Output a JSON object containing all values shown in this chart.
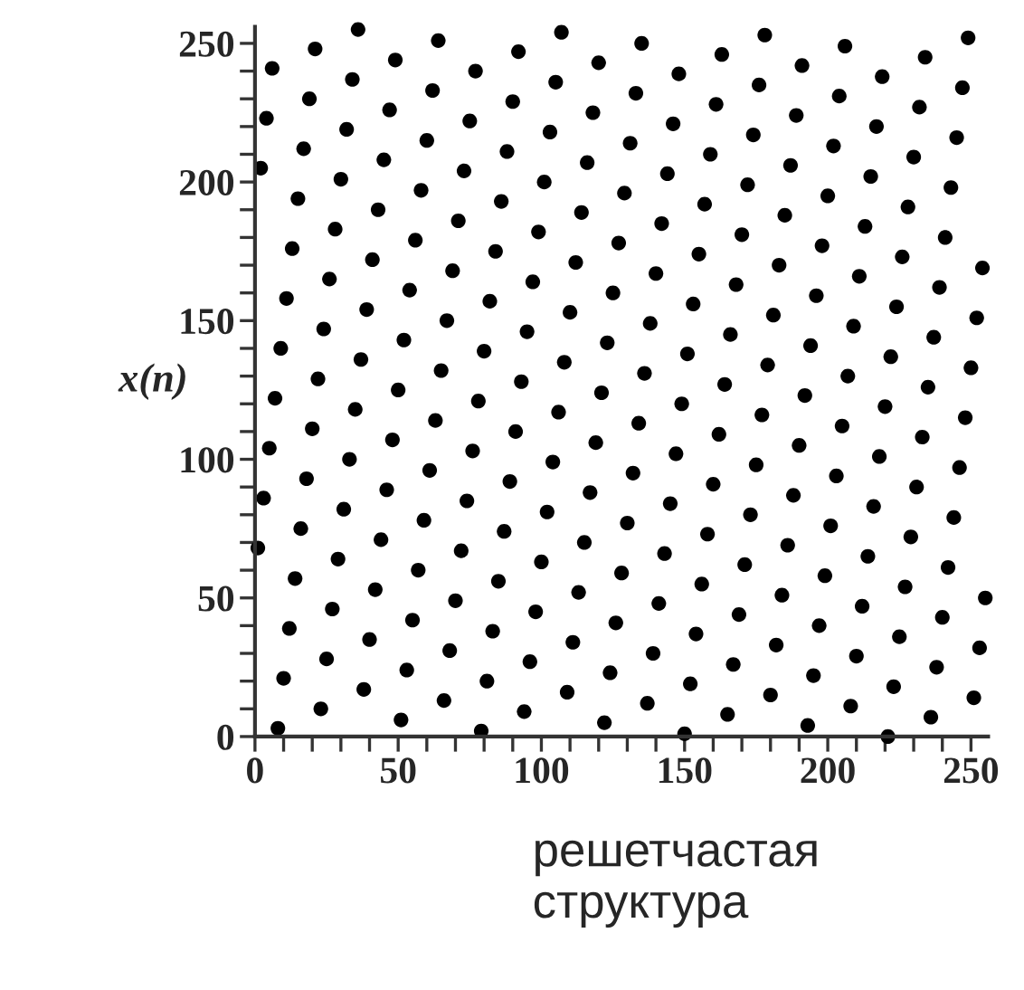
{
  "chart_data": {
    "type": "scatter",
    "ylabel": "x(n)",
    "annotations": [
      "решетчастая\nструктура"
    ],
    "x": [
      1,
      2,
      3,
      4,
      5,
      6,
      7,
      8,
      9,
      10,
      11,
      12,
      13,
      14,
      15,
      16,
      17,
      18,
      19,
      20,
      21,
      22,
      23,
      24,
      25,
      26,
      27,
      28,
      29,
      30,
      31,
      32,
      33,
      34,
      35,
      36,
      37,
      38,
      39,
      40,
      41,
      42,
      43,
      44,
      45,
      46,
      47,
      48,
      49,
      50,
      51,
      52,
      53,
      54,
      55,
      56,
      57,
      58,
      59,
      60,
      61,
      62,
      63,
      64,
      65,
      66,
      67,
      68,
      69,
      70,
      71,
      72,
      73,
      74,
      75,
      76,
      77,
      78,
      79,
      80,
      81,
      82,
      83,
      84,
      85,
      86,
      87,
      88,
      89,
      90,
      91,
      92,
      93,
      94,
      95,
      96,
      97,
      98,
      99,
      100,
      101,
      102,
      103,
      104,
      105,
      106,
      107,
      108,
      109,
      110,
      111,
      112,
      113,
      114,
      115,
      116,
      117,
      118,
      119,
      120,
      121,
      122,
      123,
      124,
      125,
      126,
      127,
      128,
      129,
      130,
      131,
      132,
      133,
      134,
      135,
      136,
      137,
      138,
      139,
      140,
      141,
      142,
      143,
      144,
      145,
      146,
      147,
      148,
      149,
      150,
      151,
      152,
      153,
      154,
      155,
      156,
      157,
      158,
      159,
      160,
      161,
      162,
      163,
      164,
      165,
      166,
      167,
      168,
      169,
      170,
      171,
      172,
      173,
      174,
      175,
      176,
      177,
      178,
      179,
      180,
      181,
      182,
      183,
      184,
      185,
      186,
      187,
      188,
      189,
      190,
      191,
      192,
      193,
      194,
      195,
      196,
      197,
      198,
      199,
      200,
      201,
      202,
      203,
      204,
      205,
      206,
      207,
      208,
      209,
      210,
      211,
      212,
      213,
      214,
      215,
      216,
      217,
      218,
      219,
      220,
      221,
      222,
      223,
      224,
      225,
      226,
      227,
      228,
      229,
      230,
      231,
      232,
      233,
      234,
      235,
      236,
      237,
      238,
      239,
      240,
      241,
      242,
      243,
      244,
      245,
      246,
      247,
      248,
      249,
      250,
      251,
      252,
      253,
      254,
      255
    ],
    "series": [
      {
        "color": "#000000",
        "values": [
          68,
          205,
          86,
          223,
          104,
          241,
          122,
          3,
          140,
          21,
          158,
          39,
          176,
          57,
          194,
          75,
          212,
          93,
          230,
          111,
          248,
          129,
          10,
          147,
          28,
          165,
          46,
          183,
          64,
          201,
          82,
          219,
          100,
          237,
          118,
          255,
          136,
          17,
          154,
          35,
          172,
          53,
          190,
          71,
          208,
          89,
          226,
          107,
          244,
          125,
          6,
          143,
          24,
          161,
          42,
          179,
          60,
          197,
          78,
          215,
          96,
          233,
          114,
          251,
          132,
          13,
          150,
          31,
          168,
          49,
          186,
          67,
          204,
          85,
          222,
          103,
          240,
          121,
          2,
          139,
          20,
          157,
          38,
          175,
          56,
          193,
          74,
          211,
          92,
          229,
          110,
          247,
          128,
          9,
          146,
          27,
          164,
          45,
          182,
          63,
          200,
          81,
          218,
          99,
          236,
          117,
          254,
          135,
          16,
          153,
          34,
          171,
          52,
          189,
          70,
          207,
          88,
          225,
          106,
          243,
          124,
          5,
          142,
          23,
          160,
          41,
          178,
          59,
          196,
          77,
          214,
          95,
          232,
          113,
          250,
          131,
          12,
          149,
          30,
          167,
          48,
          185,
          66,
          203,
          84,
          221,
          102,
          239,
          120,
          1,
          138,
          19,
          156,
          37,
          174,
          55,
          192,
          73,
          210,
          91,
          228,
          109,
          246,
          127,
          8,
          145,
          26,
          163,
          44,
          181,
          62,
          199,
          80,
          217,
          98,
          235,
          116,
          253,
          134,
          15,
          152,
          33,
          170,
          51,
          188,
          69,
          206,
          87,
          224,
          105,
          242,
          123,
          4,
          141,
          22,
          159,
          40,
          177,
          58,
          195,
          76,
          213,
          94,
          231,
          112,
          249,
          130,
          11,
          148,
          29,
          166,
          47,
          184,
          65,
          202,
          83,
          220,
          101,
          238,
          119,
          0,
          137,
          18,
          155,
          36,
          173,
          54,
          191,
          72,
          209,
          90,
          227,
          108,
          245,
          126,
          7,
          144,
          25,
          162,
          43,
          180,
          61,
          198,
          79,
          216,
          97,
          234,
          115,
          252,
          133,
          14,
          151,
          32,
          169,
          50
        ]
      }
    ],
    "marker": "circle",
    "xlim": [
      0,
      256
    ],
    "ylim": [
      0,
      256
    ],
    "xticks": [
      0,
      {
        "value": 10,
        "label": null
      },
      {
        "value": 20,
        "label": null
      },
      {
        "value": 30,
        "label": null
      },
      {
        "value": 40,
        "label": null
      },
      50,
      {
        "value": 60,
        "label": null
      },
      {
        "value": 70,
        "label": null
      },
      {
        "value": 80,
        "label": null
      },
      {
        "value": 90,
        "label": null
      },
      100,
      {
        "value": 110,
        "label": null
      },
      {
        "value": 120,
        "label": null
      },
      {
        "value": 130,
        "label": null
      },
      {
        "value": 140,
        "label": null
      },
      150,
      {
        "value": 160,
        "label": null
      },
      {
        "value": 170,
        "label": null
      },
      {
        "value": 180,
        "label": null
      },
      {
        "value": 190,
        "label": null
      },
      200,
      {
        "value": 210,
        "label": null
      },
      {
        "value": 220,
        "label": null
      },
      {
        "value": 230,
        "label": null
      },
      {
        "value": 240,
        "label": null
      },
      250
    ],
    "yticks": [
      0,
      {
        "value": 10,
        "label": null
      },
      {
        "value": 20,
        "label": null
      },
      {
        "value": 30,
        "label": null
      },
      {
        "value": 40,
        "label": null
      },
      50,
      {
        "value": 60,
        "label": null
      },
      {
        "value": 70,
        "label": null
      },
      {
        "value": 80,
        "label": null
      },
      {
        "value": 90,
        "label": null
      },
      100,
      {
        "value": 110,
        "label": null
      },
      {
        "value": 120,
        "label": null
      },
      {
        "value": 130,
        "label": null
      },
      {
        "value": 140,
        "label": null
      },
      150,
      {
        "value": 160,
        "label": null
      },
      {
        "value": 170,
        "label": null
      },
      {
        "value": 180,
        "label": null
      },
      {
        "value": 190,
        "label": null
      },
      200,
      {
        "value": 210,
        "label": null
      },
      {
        "value": 220,
        "label": null
      },
      {
        "value": 230,
        "label": null
      },
      {
        "value": 240,
        "label": null
      },
      250
    ],
    "grid": false,
    "legend": false
  }
}
